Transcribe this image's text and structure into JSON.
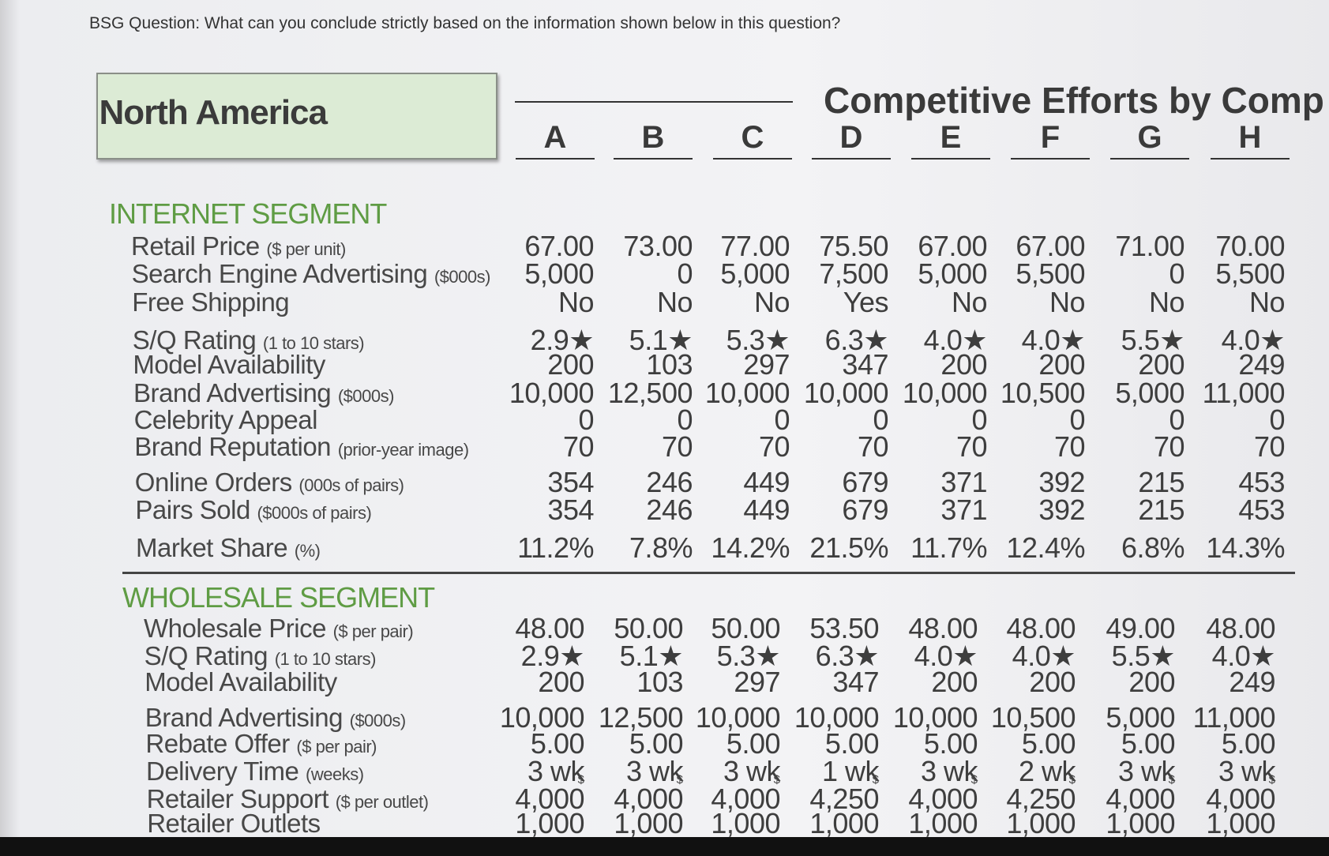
{
  "question": "BSG Question: What can you conclude strictly based on the information shown below in this question?",
  "region": "North America",
  "title": "Competitive Efforts by Comp",
  "companies": [
    "A",
    "B",
    "C",
    "D",
    "E",
    "F",
    "G",
    "H"
  ],
  "sections": [
    {
      "name": "INTERNET SEGMENT",
      "rows": [
        {
          "label": "Retail Price",
          "unit": "($ per unit)",
          "values": [
            "67.00",
            "73.00",
            "77.00",
            "75.50",
            "67.00",
            "67.00",
            "71.00",
            "70.00"
          ]
        },
        {
          "label": "Search Engine Advertising",
          "unit": "($000s)",
          "values": [
            "5,000",
            "0",
            "5,000",
            "7,500",
            "5,000",
            "5,500",
            "0",
            "5,500"
          ]
        },
        {
          "label": "Free Shipping",
          "values": [
            "No",
            "No",
            "No",
            "Yes",
            "No",
            "No",
            "No",
            "No"
          ]
        },
        {
          "label": "S/Q Rating",
          "unit": "(1 to 10 stars)",
          "values": [
            "2.9★",
            "5.1★",
            "5.3★",
            "6.3★",
            "4.0★",
            "4.0★",
            "5.5★",
            "4.0★"
          ]
        },
        {
          "label": "Model Availability",
          "values": [
            "200",
            "103",
            "297",
            "347",
            "200",
            "200",
            "200",
            "249"
          ]
        },
        {
          "label": "Brand Advertising",
          "unit": "($000s)",
          "values": [
            "10,000",
            "12,500",
            "10,000",
            "10,000",
            "10,000",
            "10,500",
            "5,000",
            "11,000"
          ]
        },
        {
          "label": "Celebrity Appeal",
          "values": [
            "0",
            "0",
            "0",
            "0",
            "0",
            "0",
            "0",
            "0"
          ]
        },
        {
          "label": "Brand Reputation",
          "unit": "(prior-year image)",
          "values": [
            "70",
            "70",
            "70",
            "70",
            "70",
            "70",
            "70",
            "70"
          ]
        },
        {
          "label": "Online Orders",
          "unit": "(000s of pairs)",
          "values": [
            "354",
            "246",
            "449",
            "679",
            "371",
            "392",
            "215",
            "453"
          ]
        },
        {
          "label": "Pairs Sold",
          "unit": "($000s of pairs)",
          "values": [
            "354",
            "246",
            "449",
            "679",
            "371",
            "392",
            "215",
            "453"
          ]
        },
        {
          "label": "Market Share",
          "unit": "(%)",
          "values": [
            "11.2%",
            "7.8%",
            "14.2%",
            "21.5%",
            "11.7%",
            "12.4%",
            "6.8%",
            "14.3%"
          ]
        }
      ]
    },
    {
      "name": "WHOLESALE SEGMENT",
      "rows": [
        {
          "label": "Wholesale Price",
          "unit": "($ per pair)",
          "values": [
            "48.00",
            "50.00",
            "50.00",
            "53.50",
            "48.00",
            "48.00",
            "49.00",
            "48.00"
          ]
        },
        {
          "label": "S/Q Rating",
          "unit": "(1 to 10 stars)",
          "values": [
            "2.9★",
            "5.1★",
            "5.3★",
            "6.3★",
            "4.0★",
            "4.0★",
            "5.5★",
            "4.0★"
          ]
        },
        {
          "label": "Model Availability",
          "values": [
            "200",
            "103",
            "297",
            "347",
            "200",
            "200",
            "200",
            "249"
          ]
        },
        {
          "label": "Brand Advertising",
          "unit": "($000s)",
          "values": [
            "10,000",
            "12,500",
            "10,000",
            "10,000",
            "10,000",
            "10,500",
            "5,000",
            "11,000"
          ]
        },
        {
          "label": "Rebate Offer",
          "unit": "($ per pair)",
          "values": [
            "5.00",
            "5.00",
            "5.00",
            "5.00",
            "5.00",
            "5.00",
            "5.00",
            "5.00"
          ]
        },
        {
          "label": "Delivery Time",
          "unit": "(weeks)",
          "values": [
            "3 wk",
            "3 wk",
            "3 wk",
            "1 wk",
            "3 wk",
            "2 wk",
            "3 wk",
            "3 wk"
          ]
        },
        {
          "label": "Retailer Support",
          "unit": "($ per outlet)",
          "value_prefix": "$",
          "values": [
            "4,000",
            "4,000",
            "4,000",
            "4,250",
            "4,000",
            "4,250",
            "4,000",
            "4,000"
          ]
        },
        {
          "label": "Retailer Outlets",
          "values": [
            "1,000",
            "1,000",
            "1,000",
            "1,000",
            "1,000",
            "1,000",
            "1,000",
            "1,000"
          ]
        }
      ]
    }
  ]
}
